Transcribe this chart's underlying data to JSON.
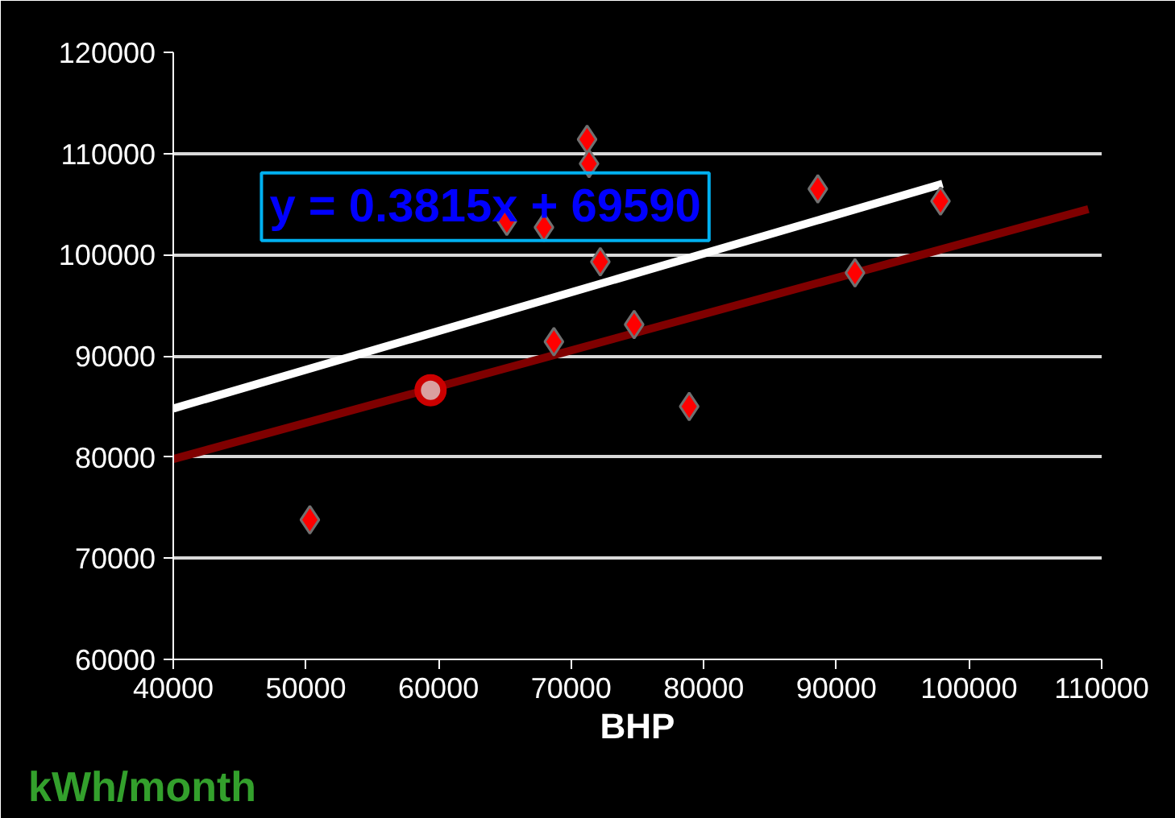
{
  "chart_data": {
    "type": "scatter",
    "xlabel": "BHP",
    "ylabel": "kWh/month",
    "annotations": [
      "y = 0.3815x + 69590"
    ],
    "xlim": [
      40000,
      110000
    ],
    "xticks": [
      40000,
      50000,
      60000,
      70000,
      80000,
      90000,
      100000,
      110000
    ],
    "ylim": [
      60000,
      120000
    ],
    "yticks": [
      60000,
      70000,
      80000,
      90000,
      100000,
      110000,
      120000
    ],
    "grid": "y",
    "marker": "diamond",
    "series": [
      {
        "color": "#ff0000",
        "x": [
          50300,
          65150,
          67950,
          68700,
          71200,
          71350,
          72200,
          74750,
          78900,
          88600,
          91400,
          97850
        ],
        "values": [
          73800,
          103300,
          102700,
          91400,
          111400,
          109000,
          99300,
          93100,
          85000,
          106500,
          98200,
          105300
        ]
      },
      {
        "marker": "circle",
        "color": "#cc0000",
        "x": [
          59400
        ],
        "values": [
          86600
        ]
      },
      {
        "type": "line",
        "marker": "none",
        "color": "#ffffff",
        "x": [
          40000,
          98000
        ],
        "values": [
          84800,
          107000
        ]
      },
      {
        "type": "line",
        "marker": "none",
        "color": "#800000",
        "x": [
          40000,
          109000
        ],
        "values": [
          79800,
          104500
        ]
      }
    ]
  }
}
